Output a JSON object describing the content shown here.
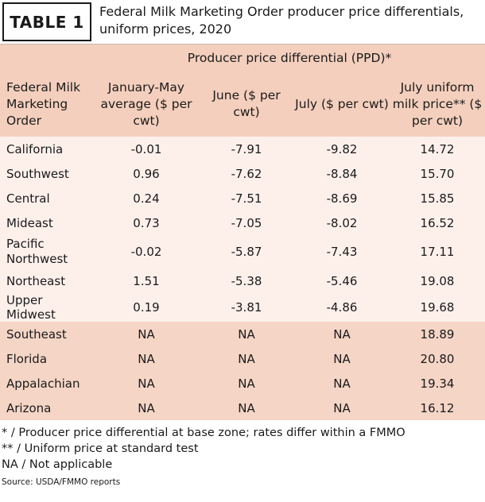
{
  "badge": "TABLE 1",
  "title": "Federal Milk Marketing Order producer price differentials, uniform prices, 2020",
  "group_header": "Producer price differential (PPD)*",
  "columns": {
    "order": "Federal Milk Marketing Order",
    "janmay": "January-May average ($ per cwt)",
    "june": "June ($ per cwt)",
    "july": "July ($ per cwt)",
    "uniform": "July uniform milk price** ($ per cwt)"
  },
  "rows": [
    {
      "order": "California",
      "janmay": "-0.01",
      "june": "-7.91",
      "july": "-9.82",
      "uniform": "14.72"
    },
    {
      "order": "Southwest",
      "janmay": "0.96",
      "june": "-7.62",
      "july": "-8.84",
      "uniform": "15.70"
    },
    {
      "order": "Central",
      "janmay": "0.24",
      "june": "-7.51",
      "july": "-8.69",
      "uniform": "15.85"
    },
    {
      "order": "Mideast",
      "janmay": "0.73",
      "june": "-7.05",
      "july": "-8.02",
      "uniform": "16.52"
    },
    {
      "order": "Pacific Northwest",
      "janmay": "-0.02",
      "june": "-5.87",
      "july": "-7.43",
      "uniform": "17.11"
    },
    {
      "order": "Northeast",
      "janmay": "1.51",
      "june": "-5.38",
      "july": "-5.46",
      "uniform": "19.08"
    },
    {
      "order": "Upper Midwest",
      "janmay": "0.19",
      "june": "-3.81",
      "july": "-4.86",
      "uniform": "19.68"
    },
    {
      "order": "Southeast",
      "janmay": "NA",
      "june": "NA",
      "july": "NA",
      "uniform": "18.89"
    },
    {
      "order": "Florida",
      "janmay": "NA",
      "june": "NA",
      "july": "NA",
      "uniform": "20.80"
    },
    {
      "order": "Appalachian",
      "janmay": "NA",
      "june": "NA",
      "july": "NA",
      "uniform": "19.34"
    },
    {
      "order": "Arizona",
      "janmay": "NA",
      "june": "NA",
      "july": "NA",
      "uniform": "16.12"
    }
  ],
  "footnotes": [
    "* / Producer price differential at base zone; rates differ within a FMMO",
    "** / Uniform price at standard test",
    "NA / Not applicable"
  ],
  "source": "Source: USDA/FMMO reports"
}
